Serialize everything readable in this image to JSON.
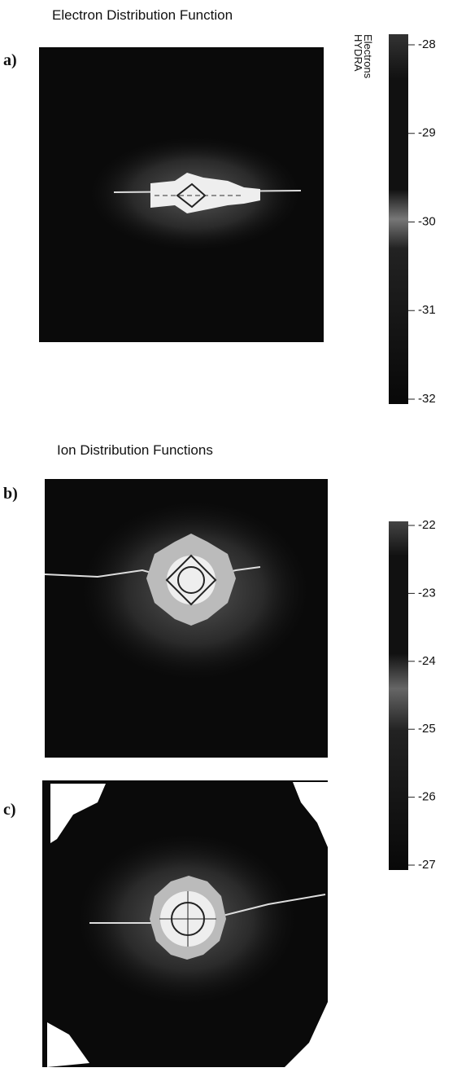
{
  "sections": [
    {
      "title": "Electron Distribution Function"
    },
    {
      "title": "Ion Distribution Functions"
    }
  ],
  "panels": [
    {
      "label": "a)"
    },
    {
      "label": "b)"
    },
    {
      "label": "c)"
    }
  ],
  "colorbars": [
    {
      "label": [
        "HYDRA",
        "Electrons"
      ],
      "ticks": [
        -28,
        -29,
        -30,
        -31,
        -32
      ]
    },
    {
      "ticks": [
        -22,
        -23,
        -24,
        -25,
        -26,
        -27
      ]
    }
  ]
}
